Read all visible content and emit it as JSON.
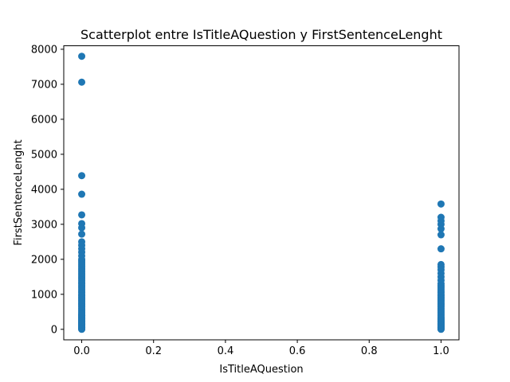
{
  "chart_data": {
    "type": "scatter",
    "title": "Scatterplot entre IsTitleAQuestion y FirstSentenceLenght",
    "xlabel": "IsTitleAQuestion",
    "ylabel": "FirstSentenceLenght",
    "xlim": [
      -0.05,
      1.05
    ],
    "ylim": [
      -300,
      8100
    ],
    "xticks": [
      0.0,
      0.2,
      0.4,
      0.6,
      0.8,
      1.0
    ],
    "xtick_labels": [
      "0.0",
      "0.2",
      "0.4",
      "0.6",
      "0.8",
      "1.0"
    ],
    "yticks": [
      0,
      1000,
      2000,
      3000,
      4000,
      5000,
      6000,
      7000,
      8000
    ],
    "ytick_labels": [
      "0",
      "1000",
      "2000",
      "3000",
      "4000",
      "5000",
      "6000",
      "7000",
      "8000"
    ],
    "grid": false,
    "marker_color": "#1f77b4",
    "series": [
      {
        "x": [
          0,
          0,
          0,
          0,
          0,
          0,
          0,
          0,
          0,
          0,
          0,
          0,
          0,
          0,
          0,
          0,
          0,
          0,
          0,
          0,
          0,
          0,
          0,
          0,
          0,
          0,
          0,
          0,
          0,
          0,
          0,
          0,
          0,
          0,
          0,
          0,
          0,
          0,
          0,
          0,
          0,
          0,
          0,
          0,
          0,
          0,
          0,
          0,
          0,
          0,
          0,
          0,
          0,
          0,
          0,
          0,
          0,
          0,
          0,
          0,
          0,
          0,
          0,
          0,
          0,
          0,
          0,
          0,
          0,
          0,
          0,
          0,
          0,
          0
        ],
        "y": [
          7800,
          7060,
          4390,
          3860,
          3270,
          3020,
          2900,
          2720,
          2500,
          2400,
          2300,
          2200,
          2100,
          2000,
          1950,
          1900,
          1850,
          1800,
          1750,
          1700,
          1650,
          1600,
          1550,
          1500,
          1450,
          1400,
          1350,
          1300,
          1250,
          1200,
          1150,
          1100,
          1050,
          1000,
          960,
          920,
          880,
          840,
          800,
          760,
          720,
          680,
          640,
          600,
          560,
          520,
          480,
          440,
          400,
          360,
          320,
          280,
          240,
          200,
          170,
          140,
          110,
          80,
          50,
          20,
          10,
          0,
          30,
          60,
          90,
          130,
          160,
          190,
          230,
          270,
          310,
          350,
          390,
          430
        ]
      },
      {
        "x": [
          1,
          1,
          1,
          1,
          1,
          1,
          1,
          1,
          1,
          1,
          1,
          1,
          1,
          1,
          1,
          1,
          1,
          1,
          1,
          1,
          1,
          1,
          1,
          1,
          1,
          1,
          1,
          1,
          1,
          1,
          1,
          1,
          1,
          1,
          1,
          1,
          1,
          1,
          1,
          1,
          1,
          1,
          1,
          1,
          1,
          1,
          1,
          1,
          1,
          1,
          1,
          1,
          1,
          1,
          1,
          1,
          1
        ],
        "y": [
          3580,
          3200,
          3100,
          3000,
          2870,
          2700,
          2300,
          1850,
          1780,
          1700,
          1600,
          1500,
          1400,
          1300,
          1250,
          1200,
          1150,
          1100,
          1050,
          1000,
          960,
          920,
          880,
          840,
          800,
          760,
          720,
          680,
          640,
          600,
          560,
          520,
          480,
          440,
          400,
          360,
          320,
          280,
          240,
          200,
          170,
          140,
          110,
          80,
          50,
          20,
          0,
          10,
          30,
          60,
          90,
          130,
          160,
          190,
          230,
          270,
          310
        ]
      }
    ]
  }
}
